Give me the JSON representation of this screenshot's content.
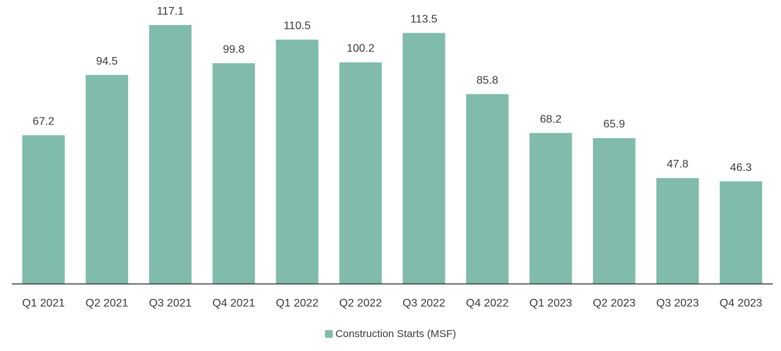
{
  "chart_data": {
    "type": "bar",
    "categories": [
      "Q1 2021",
      "Q2 2021",
      "Q3 2021",
      "Q4 2021",
      "Q1 2022",
      "Q2 2022",
      "Q3 2022",
      "Q4 2022",
      "Q1 2023",
      "Q2 2023",
      "Q3 2023",
      "Q4 2023"
    ],
    "series": [
      {
        "name": "Construction Starts (MSF)",
        "values": [
          67.2,
          94.5,
          117.1,
          99.8,
          110.5,
          100.2,
          113.5,
          85.8,
          68.2,
          65.9,
          47.8,
          46.3
        ],
        "color": "#80bbac"
      }
    ],
    "value_labels": [
      "67.2",
      "94.5",
      "117.1",
      "99.8",
      "110.5",
      "100.2",
      "113.5",
      "85.8",
      "68.2",
      "65.9",
      "47.8",
      "46.3"
    ],
    "title": "",
    "xlabel": "",
    "ylabel": "",
    "ylim": [
      0,
      117.1
    ],
    "grid": false,
    "legend_position": "bottom-center",
    "axis_color": "#3a3a3a"
  }
}
